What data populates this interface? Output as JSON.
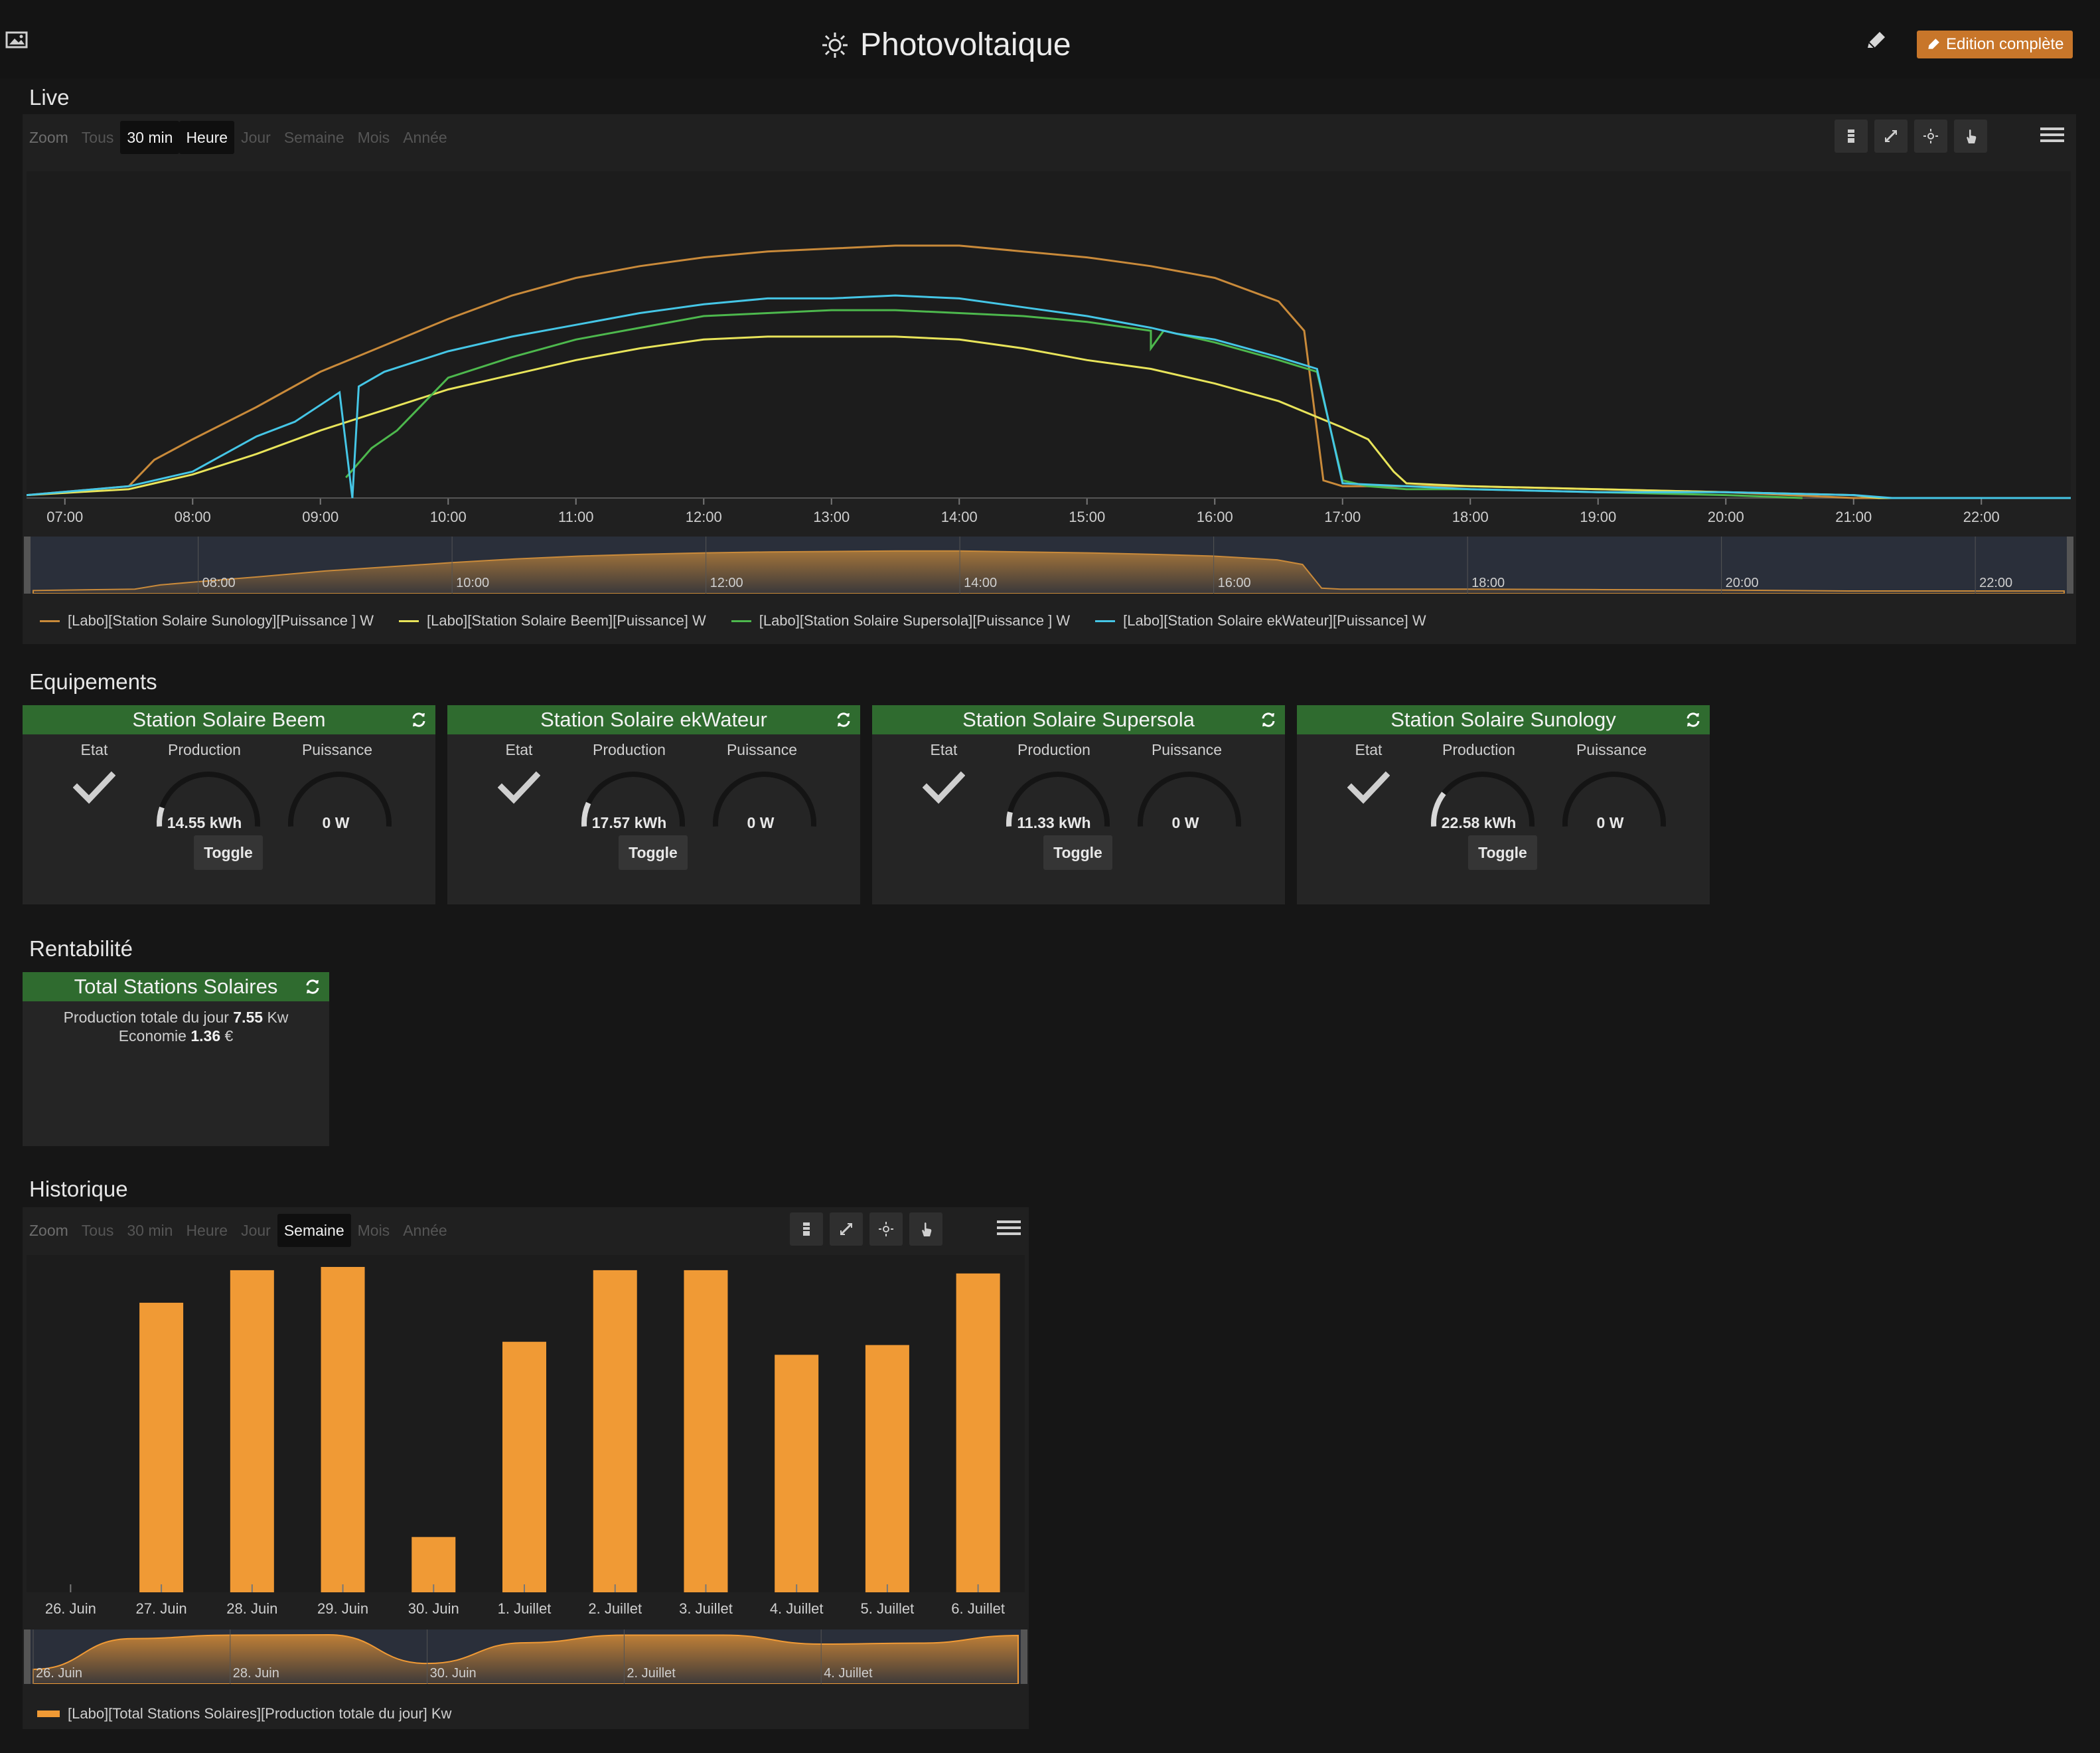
{
  "header": {
    "title": "Photovoltaique",
    "edit_full_label": "Edition complète",
    "colors": {
      "accent": "#c8762a",
      "panel_head": "#2f6b2f"
    }
  },
  "live": {
    "section_title": "Live",
    "zoom": {
      "label": "Zoom",
      "options": [
        "Tous",
        "30 min",
        "Heure",
        "Jour",
        "Semaine",
        "Mois",
        "Année"
      ],
      "active": [
        "30 min",
        "Heure"
      ]
    },
    "tools": [
      "bar-chart-icon",
      "compress-icon",
      "sun-icon",
      "hand-pointer-icon"
    ],
    "menu_icon": "hamburger-menu-icon"
  },
  "equipements": {
    "section_title": "Equipements",
    "labels": {
      "state": "Etat",
      "production": "Production",
      "power": "Puissance",
      "toggle": "Toggle"
    },
    "stations": [
      {
        "name": "Station Solaire Beem",
        "production": "14.55 kWh",
        "production_ratio": 0.12,
        "power": "0 W",
        "power_ratio": 0
      },
      {
        "name": "Station Solaire ekWateur",
        "production": "17.57 kWh",
        "production_ratio": 0.15,
        "power": "0 W",
        "power_ratio": 0
      },
      {
        "name": "Station Solaire Supersola",
        "production": "11.33 kWh",
        "production_ratio": 0.09,
        "power": "0 W",
        "power_ratio": 0
      },
      {
        "name": "Station Solaire Sunology",
        "production": "22.58 kWh",
        "production_ratio": 0.22,
        "power": "0 W",
        "power_ratio": 0
      }
    ]
  },
  "rentabilite": {
    "section_title": "Rentabilité",
    "panel_title": "Total Stations Solaires",
    "prod_label": "Production totale du jour",
    "prod_value": "7.55",
    "prod_unit": "Kw",
    "eco_label": "Economie",
    "eco_value": "1.36",
    "eco_unit": "€"
  },
  "historique": {
    "section_title": "Historique",
    "zoom": {
      "label": "Zoom",
      "options": [
        "Tous",
        "30 min",
        "Heure",
        "Jour",
        "Semaine",
        "Mois",
        "Année"
      ],
      "active": [
        "Semaine"
      ]
    },
    "tools": [
      "bar-chart-icon",
      "compress-icon",
      "sun-icon",
      "hand-pointer-icon"
    ],
    "menu_icon": "hamburger-menu-icon"
  },
  "chart_data": [
    {
      "type": "line",
      "title": "",
      "xlabel": "",
      "ylabel": "",
      "x_ticks": [
        "07:00",
        "08:00",
        "09:00",
        "10:00",
        "11:00",
        "12:00",
        "13:00",
        "14:00",
        "15:00",
        "16:00",
        "17:00",
        "18:00",
        "19:00",
        "20:00",
        "21:00",
        "22:00"
      ],
      "x_range": [
        6.7,
        22.7
      ],
      "y_range": [
        0,
        1
      ],
      "y_note_values_are_relative": true,
      "navigator_ticks": [
        "08:00",
        "10:00",
        "12:00",
        "14:00",
        "16:00",
        "18:00",
        "20:00",
        "22:00"
      ],
      "series": [
        {
          "name": "[Labo][Station Solaire Sunology][Puissance ] W",
          "color": "#c98a3a",
          "x": [
            6.7,
            7.5,
            7.7,
            8.0,
            8.5,
            9.0,
            9.5,
            10.0,
            10.5,
            11.0,
            11.5,
            12.0,
            12.5,
            13.0,
            13.5,
            14.0,
            14.5,
            15.0,
            15.5,
            16.0,
            16.5,
            16.7,
            16.85,
            17.0,
            17.5,
            18.0,
            19.0,
            20.0,
            21.0,
            22.0,
            22.7
          ],
          "y": [
            0.01,
            0.04,
            0.13,
            0.2,
            0.31,
            0.43,
            0.52,
            0.61,
            0.69,
            0.75,
            0.79,
            0.82,
            0.84,
            0.85,
            0.86,
            0.86,
            0.84,
            0.82,
            0.79,
            0.75,
            0.67,
            0.57,
            0.06,
            0.04,
            0.04,
            0.04,
            0.03,
            0.02,
            0.0,
            0.0,
            0.0
          ]
        },
        {
          "name": "[Labo][Station Solaire Beem][Puissance] W",
          "color": "#e8e45a",
          "x": [
            6.7,
            7.5,
            8.0,
            8.5,
            9.0,
            9.5,
            10.0,
            10.5,
            11.0,
            11.5,
            12.0,
            12.5,
            13.0,
            13.5,
            14.0,
            14.5,
            15.0,
            15.5,
            16.0,
            16.5,
            17.0,
            17.2,
            17.4,
            17.5,
            18.0,
            19.0,
            20.0,
            21.0,
            21.2,
            22.7
          ],
          "y": [
            0.01,
            0.03,
            0.08,
            0.15,
            0.23,
            0.3,
            0.37,
            0.42,
            0.47,
            0.51,
            0.54,
            0.55,
            0.55,
            0.55,
            0.54,
            0.51,
            0.47,
            0.44,
            0.39,
            0.33,
            0.24,
            0.2,
            0.09,
            0.05,
            0.04,
            0.03,
            0.02,
            0.01,
            0.0,
            0.0
          ]
        },
        {
          "name": "[Labo][Station Solaire Supersola][Puissance ] W",
          "color": "#4db84d",
          "x": [
            9.2,
            9.4,
            9.6,
            9.8,
            10.0,
            10.5,
            11.0,
            11.5,
            12.0,
            12.5,
            13.0,
            13.5,
            14.0,
            14.5,
            15.0,
            15.5,
            15.5,
            15.6,
            16.0,
            16.5,
            16.8,
            17.0,
            17.2,
            17.5,
            18.0,
            19.0,
            20.0,
            20.6
          ],
          "y": [
            0.07,
            0.17,
            0.23,
            0.32,
            0.41,
            0.48,
            0.54,
            0.58,
            0.62,
            0.63,
            0.64,
            0.64,
            0.63,
            0.62,
            0.6,
            0.57,
            0.51,
            0.57,
            0.53,
            0.47,
            0.43,
            0.06,
            0.04,
            0.03,
            0.03,
            0.02,
            0.01,
            0.0
          ]
        },
        {
          "name": "[Labo][Station Solaire ekWateur][Puissance] W",
          "color": "#45c6e6",
          "x": [
            6.7,
            7.5,
            8.0,
            8.5,
            8.8,
            9.15,
            9.25,
            9.3,
            9.5,
            10.0,
            10.5,
            11.0,
            11.5,
            12.0,
            12.5,
            13.0,
            13.5,
            14.0,
            14.5,
            15.0,
            15.5,
            15.7,
            16.0,
            16.5,
            16.8,
            17.0,
            17.5,
            18.0,
            19.0,
            20.0,
            21.0,
            21.3,
            22.7
          ],
          "y": [
            0.01,
            0.04,
            0.09,
            0.21,
            0.26,
            0.36,
            0.0,
            0.38,
            0.43,
            0.5,
            0.55,
            0.59,
            0.63,
            0.66,
            0.68,
            0.68,
            0.69,
            0.68,
            0.65,
            0.62,
            0.58,
            0.56,
            0.54,
            0.48,
            0.44,
            0.05,
            0.04,
            0.03,
            0.02,
            0.02,
            0.01,
            0.0,
            0.0
          ]
        }
      ]
    },
    {
      "type": "bar",
      "title": "",
      "xlabel": "",
      "ylabel": "",
      "categories": [
        "26. Juin",
        "27. Juin",
        "28. Juin",
        "29. Juin",
        "30. Juin",
        "1. Juillet",
        "2. Juillet",
        "3. Juillet",
        "4. Juillet",
        "5. Juillet",
        "6. Juillet"
      ],
      "values": [
        0,
        0.89,
        0.99,
        1.0,
        0.17,
        0.77,
        0.99,
        0.99,
        0.73,
        0.76,
        0.98
      ],
      "values_are_relative": true,
      "ylim": [
        0,
        1
      ],
      "color": "#f09a35",
      "navigator_ticks": [
        "26. Juin",
        "28. Juin",
        "30. Juin",
        "2. Juillet",
        "4. Juillet"
      ],
      "series": [
        {
          "name": "[Labo][Total Stations Solaires][Production totale du jour] Kw",
          "color": "#f09a35"
        }
      ]
    }
  ]
}
